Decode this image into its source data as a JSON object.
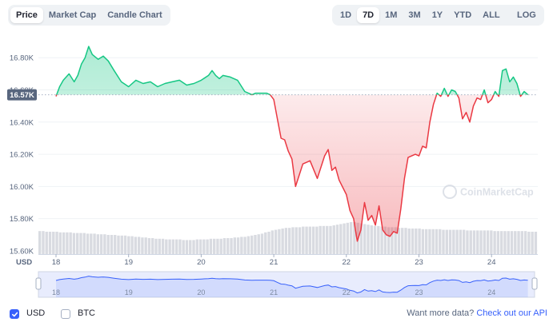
{
  "tabs": [
    {
      "label": "Price",
      "active": true
    },
    {
      "label": "Market Cap",
      "active": false
    },
    {
      "label": "Candle Chart",
      "active": false
    }
  ],
  "ranges": [
    {
      "label": "1D",
      "active": false
    },
    {
      "label": "7D",
      "active": true
    },
    {
      "label": "1M",
      "active": false
    },
    {
      "label": "3M",
      "active": false
    },
    {
      "label": "1Y",
      "active": false
    },
    {
      "label": "YTD",
      "active": false
    },
    {
      "label": "ALL",
      "active": false
    }
  ],
  "calendar_icon": "calendar-icon",
  "log_label": "LOG",
  "chart_data": {
    "type": "area",
    "y_ticks": [
      "16.80K",
      "16.60K",
      "16.40K",
      "16.20K",
      "16.00K",
      "15.80K",
      "15.60K"
    ],
    "y_tick_values": [
      16800,
      16600,
      16400,
      16200,
      16000,
      15800,
      15600
    ],
    "ylim": [
      15580,
      16960
    ],
    "x_ticks": [
      "18",
      "19",
      "20",
      "21",
      "22",
      "23",
      "24"
    ],
    "x_axis_unit": "USD",
    "current_price_label": "16.57K",
    "current_price": 16570,
    "baseline": 16570,
    "watermark": "CoinMarketCap",
    "colors": {
      "up": "#16c784",
      "down": "#ea3943",
      "volume": "#d9dbe1",
      "navigator": "#3861fb",
      "grid": "#eff2f5"
    },
    "series": [
      {
        "x_days": [
          0.0,
          0.05,
          0.1,
          0.18,
          0.25,
          0.3,
          0.35,
          0.4,
          0.45,
          0.5,
          0.58,
          0.65,
          0.72,
          0.8,
          0.9,
          1.0,
          1.1,
          1.2,
          1.3,
          1.4,
          1.5,
          1.6,
          1.7,
          1.8,
          1.9,
          2.0,
          2.1,
          2.15,
          2.2,
          2.25,
          2.3,
          2.4,
          2.5,
          2.6,
          2.7,
          2.75,
          2.8,
          2.9,
          2.95,
          3.0,
          3.05,
          3.1,
          3.15,
          3.2,
          3.25,
          3.3,
          3.4,
          3.5,
          3.6,
          3.7,
          3.75,
          3.8,
          3.85,
          3.9,
          4.0,
          4.05,
          4.1,
          4.15,
          4.2,
          4.25,
          4.3,
          4.35,
          4.4,
          4.45,
          4.5,
          4.55,
          4.6,
          4.65,
          4.7,
          4.75,
          4.8,
          4.85,
          4.9,
          4.95,
          5.0,
          5.05,
          5.1,
          5.15,
          5.2,
          5.25,
          5.3,
          5.35,
          5.4,
          5.45,
          5.5,
          5.55,
          5.6,
          5.65,
          5.7,
          5.75,
          5.8,
          5.85,
          5.9,
          5.95,
          6.0,
          6.05,
          6.1,
          6.15,
          6.2,
          6.25,
          6.3,
          6.35,
          6.4,
          6.45,
          6.5
        ],
        "y": [
          16560,
          16620,
          16660,
          16700,
          16650,
          16690,
          16760,
          16800,
          16870,
          16820,
          16790,
          16810,
          16780,
          16720,
          16650,
          16620,
          16660,
          16640,
          16650,
          16620,
          16640,
          16650,
          16660,
          16630,
          16640,
          16660,
          16690,
          16720,
          16690,
          16670,
          16690,
          16680,
          16660,
          16590,
          16570,
          16580,
          16580,
          16580,
          16570,
          16540,
          16420,
          16300,
          16290,
          16220,
          16170,
          16000,
          16140,
          16160,
          16050,
          16190,
          16230,
          16100,
          16120,
          16040,
          15950,
          15850,
          15800,
          15660,
          15730,
          15900,
          15790,
          15820,
          15760,
          15880,
          15730,
          15700,
          15690,
          15720,
          15710,
          15860,
          16050,
          16180,
          16190,
          16200,
          16190,
          16250,
          16240,
          16400,
          16510,
          16580,
          16560,
          16610,
          16560,
          16600,
          16590,
          16550,
          16420,
          16460,
          16400,
          16500,
          16550,
          16540,
          16600,
          16520,
          16540,
          16590,
          16560,
          16720,
          16730,
          16650,
          16680,
          16640,
          16560,
          16590,
          16570
        ]
      }
    ],
    "volume": [
      0.36,
      0.36,
      0.35,
      0.35,
      0.35,
      0.35,
      0.34,
      0.34,
      0.34,
      0.34,
      0.33,
      0.33,
      0.33,
      0.33,
      0.32,
      0.32,
      0.32,
      0.31,
      0.31,
      0.31,
      0.3,
      0.3,
      0.3,
      0.29,
      0.29,
      0.29,
      0.28,
      0.28,
      0.27,
      0.27,
      0.26,
      0.26,
      0.25,
      0.25,
      0.24,
      0.24,
      0.24,
      0.23,
      0.23,
      0.23,
      0.23,
      0.23,
      0.22,
      0.22,
      0.22,
      0.22,
      0.23,
      0.23,
      0.23,
      0.23,
      0.24,
      0.24,
      0.24,
      0.24,
      0.25,
      0.25,
      0.25,
      0.26,
      0.26,
      0.27,
      0.27,
      0.28,
      0.29,
      0.3,
      0.31,
      0.32,
      0.34,
      0.35,
      0.37,
      0.38,
      0.39,
      0.4,
      0.41,
      0.41,
      0.42,
      0.42,
      0.42,
      0.43,
      0.43,
      0.43,
      0.43,
      0.43,
      0.44,
      0.44,
      0.44,
      0.44,
      0.45,
      0.46,
      0.47,
      0.48,
      0.49,
      0.5,
      0.5,
      0.49,
      0.48,
      0.47,
      0.46,
      0.45,
      0.44,
      0.44,
      0.43,
      0.43,
      0.42,
      0.42,
      0.42,
      0.41,
      0.41,
      0.41,
      0.4,
      0.4,
      0.4,
      0.4,
      0.39,
      0.39,
      0.39,
      0.39,
      0.39,
      0.39,
      0.38,
      0.38,
      0.38,
      0.38,
      0.38,
      0.38,
      0.38,
      0.37,
      0.37,
      0.37,
      0.37,
      0.37,
      0.37,
      0.37,
      0.37,
      0.36,
      0.36,
      0.36,
      0.36,
      0.36,
      0.36,
      0.36,
      0.36,
      0.36,
      0.36,
      0.35,
      0.35,
      0.35
    ],
    "navigator_x_ticks": [
      "18",
      "19",
      "20",
      "21",
      "22",
      "23",
      "24"
    ]
  },
  "footer": {
    "usd_label": "USD",
    "btc_label": "BTC",
    "more_data": "Want more data?",
    "api_link": "Check out our API"
  }
}
